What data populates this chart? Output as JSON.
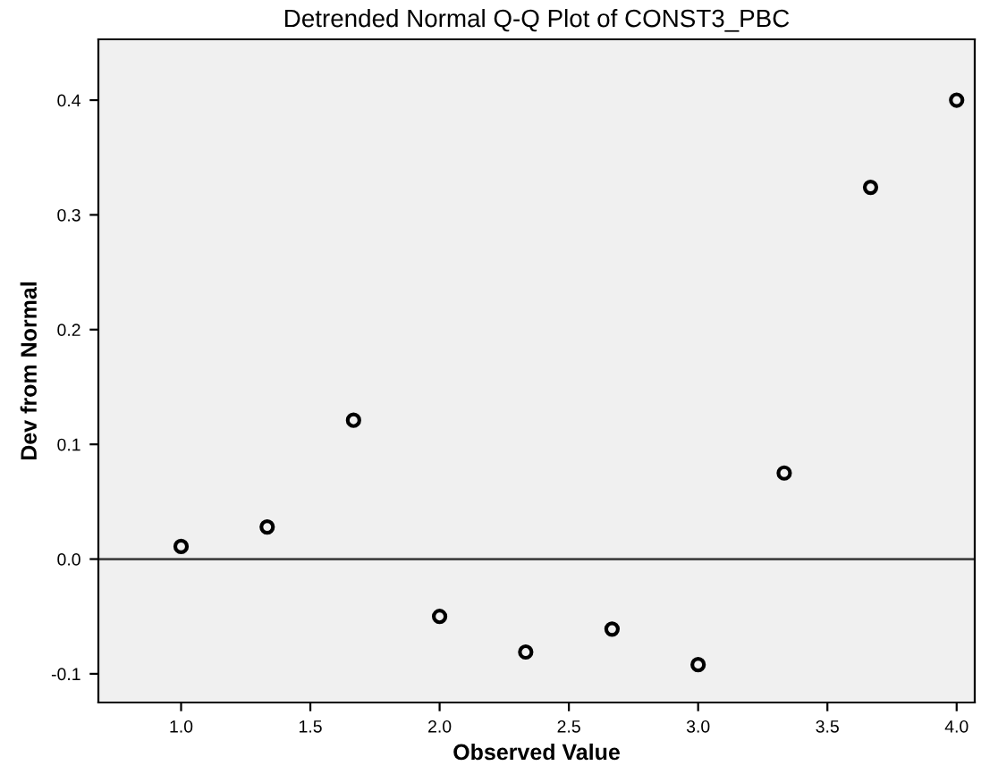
{
  "chart_data": {
    "type": "scatter",
    "title": "Detrended Normal Q-Q Plot of CONST3_PBC",
    "xlabel": "Observed Value",
    "ylabel": "Dev from Normal",
    "x": [
      1.0,
      1.333,
      1.667,
      2.0,
      2.333,
      2.667,
      3.0,
      3.333,
      3.667,
      4.0
    ],
    "series": [
      {
        "color": "#000000",
        "values": [
          0.011,
          0.028,
          0.121,
          -0.05,
          -0.081,
          -0.061,
          -0.092,
          0.075,
          0.324,
          0.4
        ]
      }
    ],
    "xlim": [
      0.68,
      4.07
    ],
    "ylim": [
      -0.125,
      0.453
    ],
    "xticks": [
      {
        "value": 1.0,
        "label": "1.0"
      },
      1.5,
      {
        "value": 2.0,
        "label": "2.0"
      },
      2.5,
      {
        "value": 3.0,
        "label": "3.0"
      },
      3.5,
      {
        "value": 4.0,
        "label": "4.0"
      }
    ],
    "yticks": [
      -0.1,
      {
        "value": 0.0,
        "label": "0.0"
      },
      0.1,
      0.2,
      0.3,
      0.4
    ],
    "ref_lines": [
      {
        "axis": "y",
        "value": 0.0,
        "color": "#444444"
      }
    ],
    "marker": "circle",
    "grid": false
  }
}
